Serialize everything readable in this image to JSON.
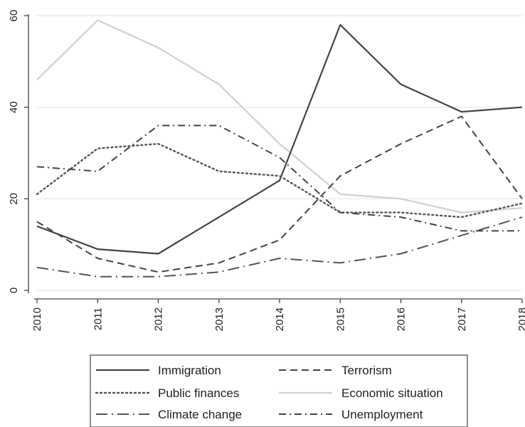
{
  "chart_data": {
    "type": "line",
    "x": [
      2010,
      2011,
      2012,
      2013,
      2014,
      2015,
      2016,
      2017,
      2018
    ],
    "x_tick_labels": [
      "2010",
      "2011",
      "2012",
      "2013",
      "2014",
      "2015",
      "2016",
      "2017",
      "2018"
    ],
    "ylim": [
      0,
      60
    ],
    "y_ticks": [
      0,
      20,
      40,
      60
    ],
    "y_tick_labels": [
      "0",
      "20",
      "40",
      "60"
    ],
    "grid": "horizontal",
    "legend_position": "bottom",
    "series": [
      {
        "name": "Immigration",
        "style": "solid",
        "color": "#444444",
        "values": [
          14,
          9,
          8,
          16,
          24,
          58,
          45,
          39,
          40
        ]
      },
      {
        "name": "Terrorism",
        "style": "dashed",
        "color": "#444444",
        "values": [
          15,
          7,
          4,
          6,
          11,
          25,
          32,
          38,
          20
        ]
      },
      {
        "name": "Public finances",
        "style": "dotted",
        "color": "#555555",
        "values": [
          21,
          31,
          32,
          26,
          25,
          17,
          17,
          16,
          19
        ]
      },
      {
        "name": "Economic situation",
        "style": "solid-light",
        "color": "#d0d0d0",
        "values": [
          46,
          59,
          53,
          45,
          32,
          21,
          20,
          17,
          18
        ]
      },
      {
        "name": "Climate change",
        "style": "long-dash-dot",
        "color": "#555555",
        "values": [
          5,
          3,
          3,
          4,
          7,
          6,
          8,
          12,
          16
        ]
      },
      {
        "name": "Unemployment",
        "style": "dash-dot",
        "color": "#444444",
        "values": [
          27,
          26,
          36,
          36,
          29,
          17,
          16,
          13,
          13
        ]
      }
    ]
  }
}
